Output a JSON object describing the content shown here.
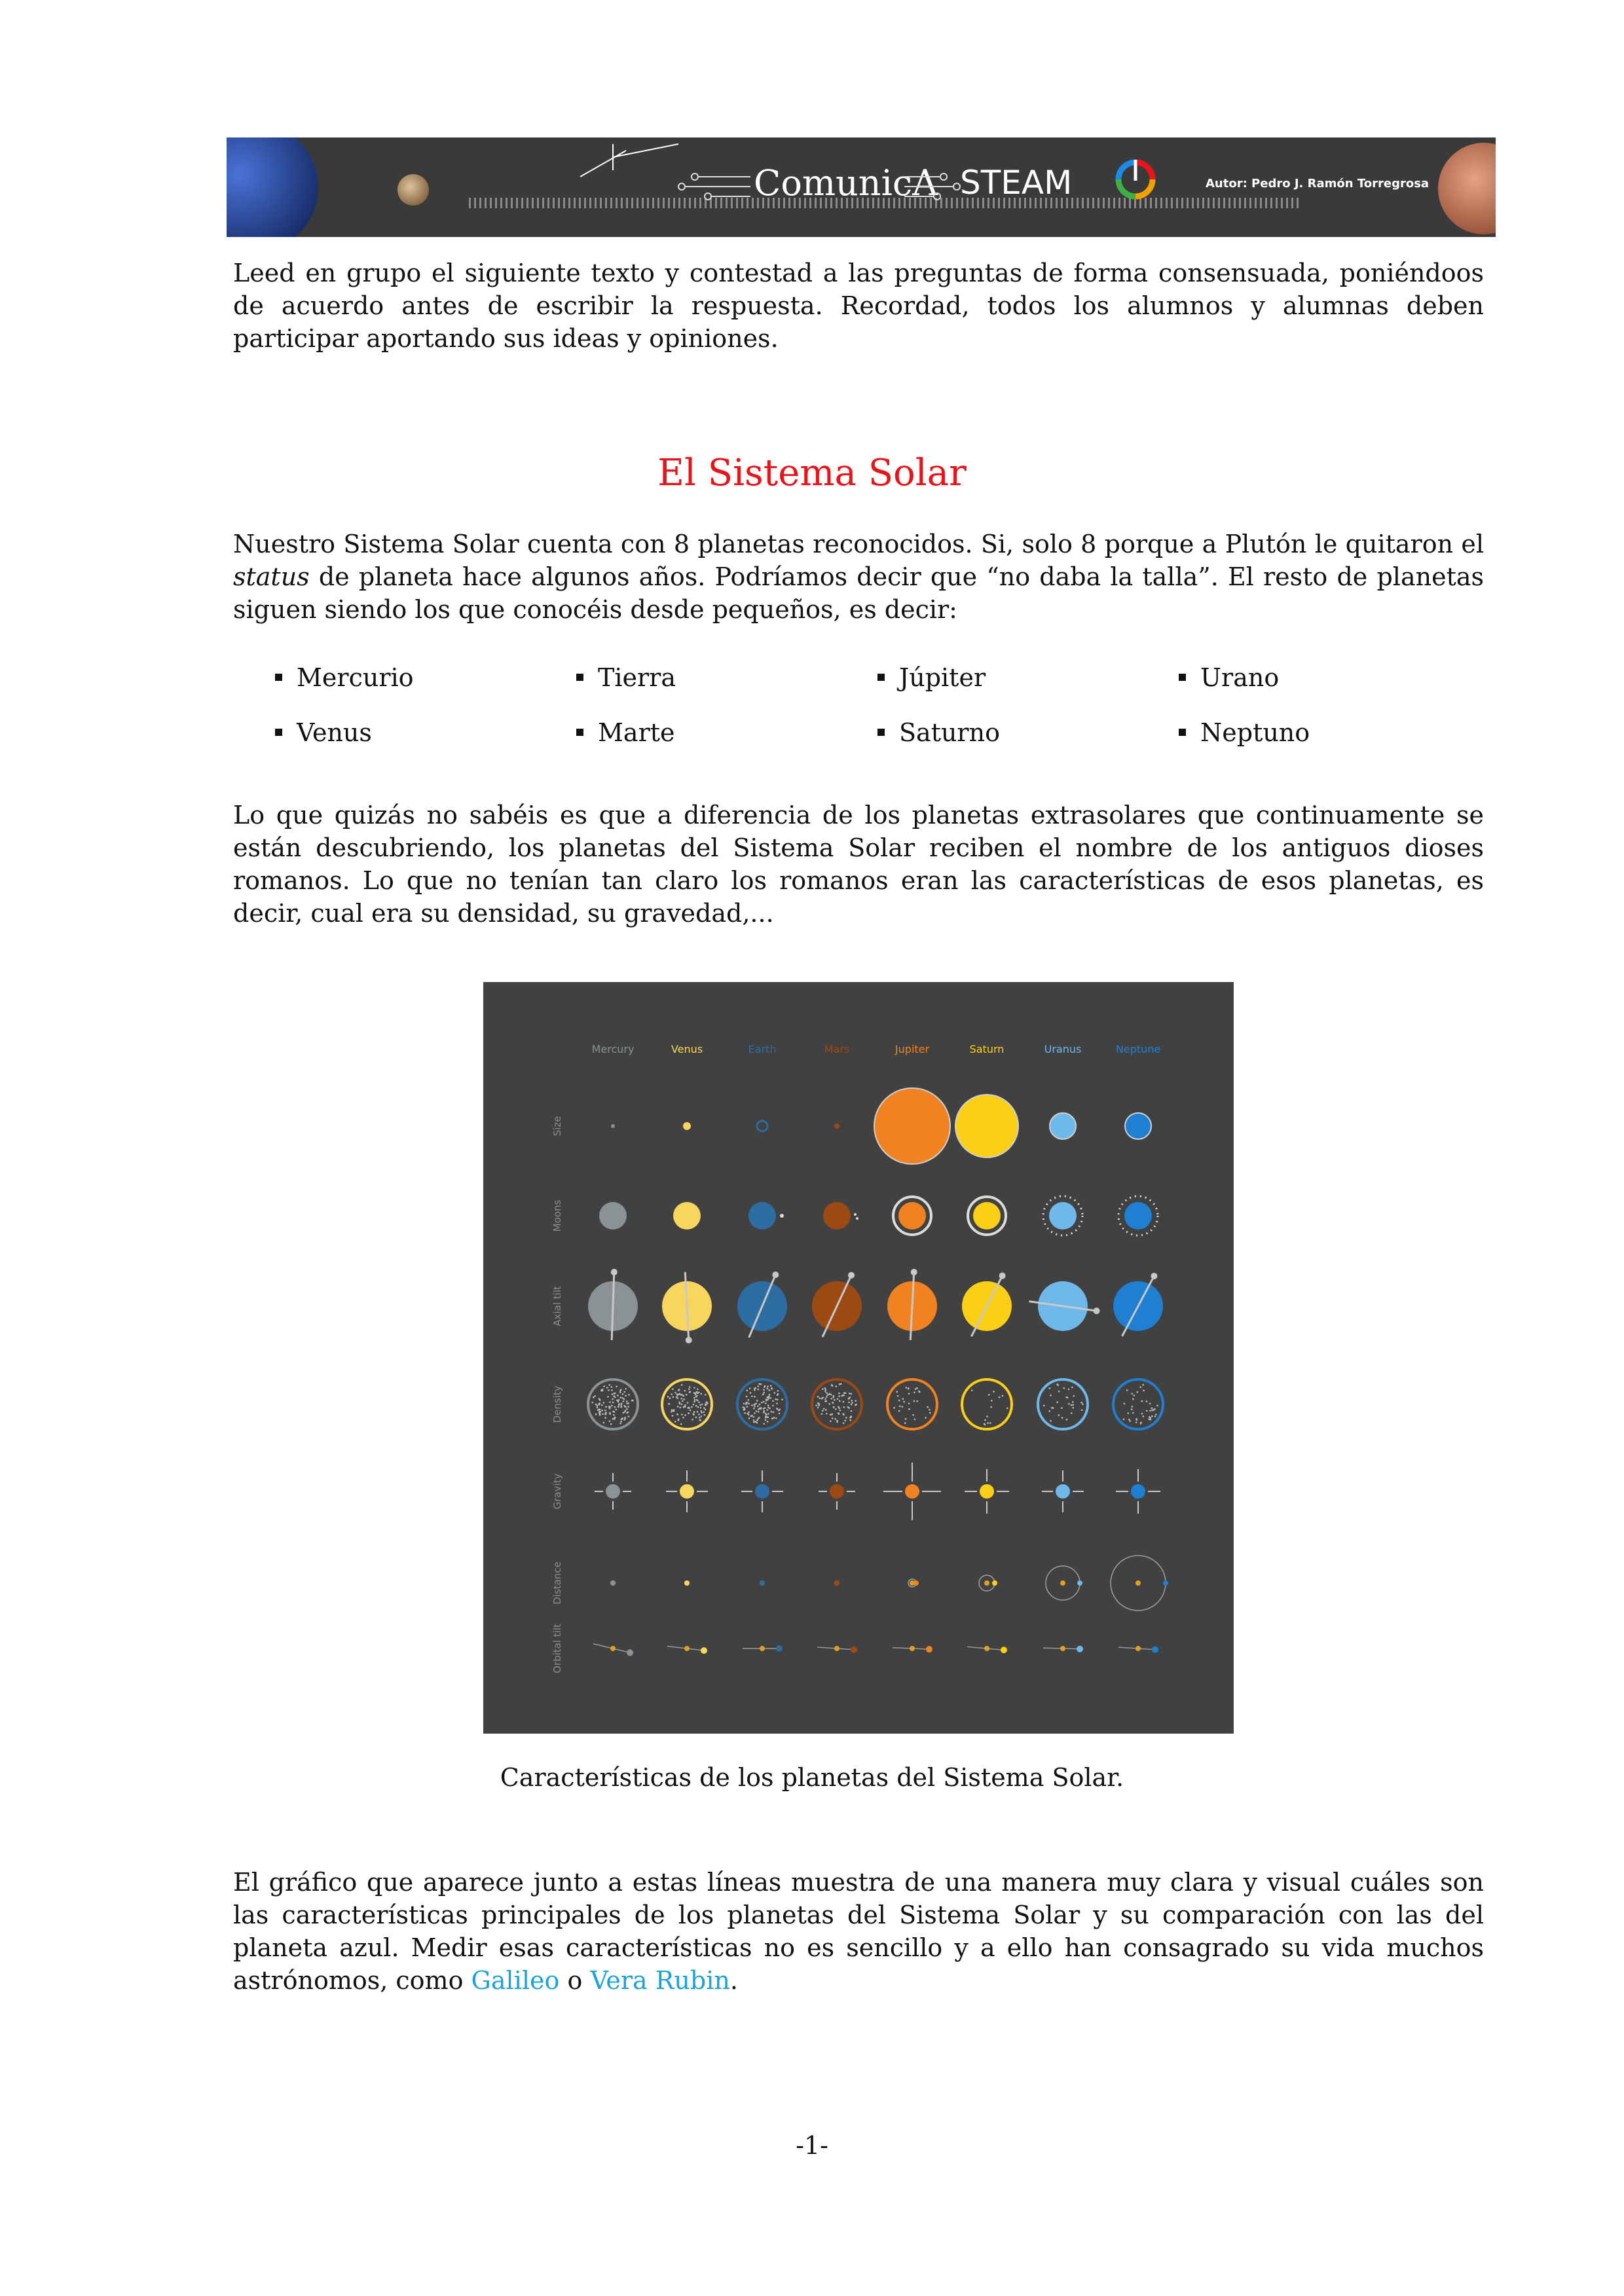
{
  "banner": {
    "logo_text": "ComunicA",
    "steam_text": "STEAM",
    "author": "Autor: Pedro J. Ramón Torregrosa"
  },
  "intro": "Leed en grupo el siguiente texto y contestad a las preguntas de forma consensuada, poniéndoos de acuerdo antes de escribir la respuesta. Recordad, todos los alumnos y alumnas deben participar aportando sus ideas y opiniones.",
  "title": "El Sistema Solar",
  "paragraph1": {
    "before_italic": "Nuestro Sistema Solar cuenta con 8 planetas reconocidos. Si, solo 8 porque a Plutón le quitaron el ",
    "italic": "status",
    "after_italic": " de planeta hace algunos años. Podríamos decir que “no daba la talla”. El resto de planetas siguen siendo los que conocéis desde pequeños, es decir:"
  },
  "planet_list": [
    "Mercurio",
    "Tierra",
    "Júpiter",
    "Urano",
    "Venus",
    "Marte",
    "Saturno",
    "Neptuno"
  ],
  "paragraph2": "Lo que quizás no sabéis es que a diferencia de los planetas extrasolares que continuamente se están descubriendo, los planetas del Sistema Solar reciben el nombre de los antiguos dioses romanos. Lo que no tenían tan claro los romanos eran las características de esos planetas, es decir, cual era su densidad, su gravedad,...",
  "figure": {
    "planets": [
      {
        "name": "Mercury",
        "color": "#8a9296"
      },
      {
        "name": "Venus",
        "color": "#f8d55c"
      },
      {
        "name": "Earth",
        "color": "#2e6da4"
      },
      {
        "name": "Mars",
        "color": "#9c4a13"
      },
      {
        "name": "Jupiter",
        "color": "#f08221"
      },
      {
        "name": "Saturn",
        "color": "#fccf17"
      },
      {
        "name": "Uranus",
        "color": "#6fb8ea"
      },
      {
        "name": "Neptune",
        "color": "#1f7fd0"
      }
    ],
    "rows": [
      "Size",
      "Moons",
      "Axial tilt",
      "Density",
      "Gravity",
      "Distance",
      "Orbital tilt"
    ]
  },
  "caption": "Características de los planetas del Sistema Solar.",
  "paragraph3": {
    "text": "El gráfico que aparece junto a estas líneas muestra de una manera muy clara y visual cuáles son las características principales de los planetas del Sistema Solar y su comparación con las del planeta azul. Medir esas características no es sencillo y a ello han consagrado su vida muchos astrónomos, como ",
    "link1": "Galileo",
    "conj": " o ",
    "link2": "Vera Rubin",
    "end": "."
  },
  "page_number": "-1-",
  "colors": {
    "title": "#e8141a",
    "link": "#1aa3d4",
    "figure_bg": "#414141"
  }
}
